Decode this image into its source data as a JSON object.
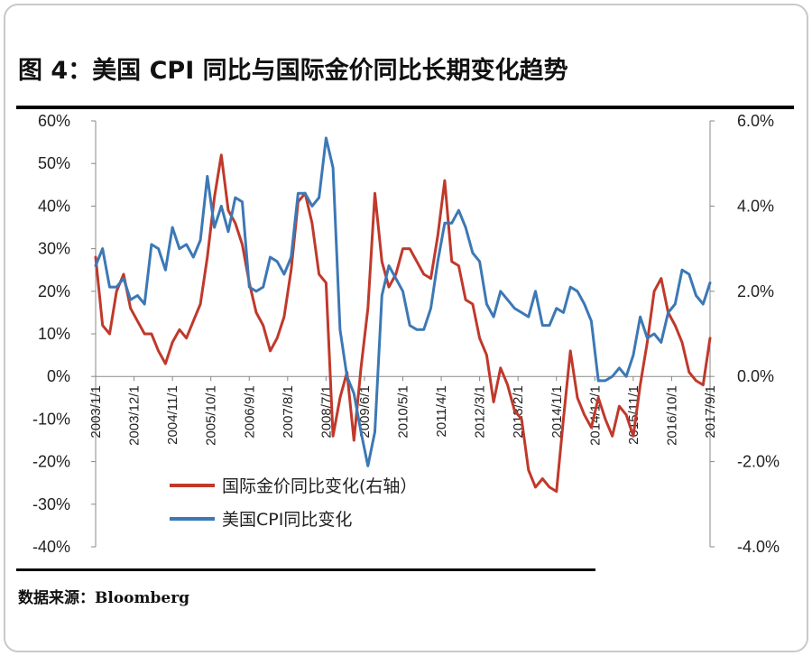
{
  "title": "图 4：美国 CPI 同比与国际金价同比长期变化趋势",
  "source": "数据来源：Bloomberg",
  "chart_data": {
    "type": "line",
    "left_axis": {
      "min": -40,
      "max": 60,
      "step": 10,
      "ticks": [
        "60%",
        "50%",
        "40%",
        "30%",
        "20%",
        "10%",
        "0%",
        "-10%",
        "-20%",
        "-30%",
        "-40%"
      ]
    },
    "right_axis": {
      "min": -4,
      "max": 6,
      "step": 2,
      "ticks": [
        "6.0%",
        "4.0%",
        "2.0%",
        "0.0%",
        "-2.0%",
        "-4.0%"
      ]
    },
    "x_labels": [
      "2003/1/1",
      "2003/12/1",
      "2004/11/1",
      "2005/10/1",
      "2006/9/1",
      "2007/8/1",
      "2008/7/1",
      "2009/6/1",
      "2010/5/1",
      "2011/4/1",
      "2012/3/1",
      "2013/2/1",
      "2014/1/1",
      "2014/12/1",
      "2015/11/1",
      "2016/10/1",
      "2017/9/1"
    ],
    "x_start": "2003-01",
    "x_end": "2017-09",
    "colors": {
      "gold": "#c0392b",
      "cpi": "#3c78b5"
    },
    "legend_position": "bottom-left",
    "series": [
      {
        "name": "国际金价同比变化(右轴）",
        "axis": "right",
        "color": "#c0392b",
        "dates": [
          "2003-01",
          "2003-03",
          "2003-05",
          "2003-07",
          "2003-09",
          "2003-11",
          "2004-01",
          "2004-03",
          "2004-05",
          "2004-07",
          "2004-09",
          "2004-11",
          "2005-01",
          "2005-03",
          "2005-05",
          "2005-07",
          "2005-09",
          "2005-11",
          "2006-01",
          "2006-03",
          "2006-05",
          "2006-07",
          "2006-09",
          "2006-11",
          "2007-01",
          "2007-03",
          "2007-05",
          "2007-07",
          "2007-09",
          "2007-11",
          "2008-01",
          "2008-03",
          "2008-05",
          "2008-07",
          "2008-09",
          "2008-11",
          "2009-01",
          "2009-03",
          "2009-05",
          "2009-07",
          "2009-09",
          "2009-11",
          "2010-01",
          "2010-03",
          "2010-05",
          "2010-07",
          "2010-09",
          "2010-11",
          "2011-01",
          "2011-03",
          "2011-05",
          "2011-07",
          "2011-09",
          "2011-11",
          "2012-01",
          "2012-03",
          "2012-05",
          "2012-07",
          "2012-09",
          "2012-11",
          "2013-01",
          "2013-03",
          "2013-05",
          "2013-07",
          "2013-09",
          "2013-11",
          "2014-01",
          "2014-03",
          "2014-05",
          "2014-07",
          "2014-09",
          "2014-11",
          "2015-01",
          "2015-03",
          "2015-05",
          "2015-07",
          "2015-09",
          "2015-11",
          "2016-01",
          "2016-03",
          "2016-05",
          "2016-07",
          "2016-09",
          "2016-11",
          "2017-01",
          "2017-03",
          "2017-05",
          "2017-07",
          "2017-09"
        ],
        "values": [
          2.8,
          1.2,
          1.0,
          2.0,
          2.4,
          1.6,
          1.3,
          1.0,
          1.0,
          0.6,
          0.3,
          0.8,
          1.1,
          0.9,
          1.3,
          1.7,
          2.8,
          4.2,
          5.2,
          3.9,
          3.6,
          3.1,
          2.2,
          1.5,
          1.2,
          0.6,
          0.9,
          1.4,
          2.5,
          4.1,
          4.3,
          3.6,
          2.4,
          2.2,
          -1.4,
          -0.5,
          0.1,
          -1.5,
          0.2,
          1.6,
          4.3,
          2.7,
          2.1,
          2.4,
          3.0,
          3.0,
          2.7,
          2.4,
          2.3,
          3.3,
          4.6,
          2.7,
          2.6,
          1.8,
          1.7,
          0.9,
          0.5,
          -0.6,
          0.2,
          -0.2,
          -0.8,
          -1.0,
          -2.2,
          -2.6,
          -2.4,
          -2.6,
          -2.7,
          -1.0,
          0.6,
          -0.5,
          -0.9,
          -1.2,
          -0.5,
          -1.0,
          -1.4,
          -0.7,
          -0.9,
          -1.4,
          -0.2,
          0.8,
          2.0,
          2.3,
          1.5,
          1.2,
          0.8,
          0.1,
          -0.1,
          -0.2,
          0.9
        ]
      },
      {
        "name": "美国CPI同比变化",
        "axis": "right",
        "color": "#3c78b5",
        "dates": [
          "2003-01",
          "2003-03",
          "2003-05",
          "2003-07",
          "2003-09",
          "2003-11",
          "2004-01",
          "2004-03",
          "2004-05",
          "2004-07",
          "2004-09",
          "2004-11",
          "2005-01",
          "2005-03",
          "2005-05",
          "2005-07",
          "2005-09",
          "2005-11",
          "2006-01",
          "2006-03",
          "2006-05",
          "2006-07",
          "2006-09",
          "2006-11",
          "2007-01",
          "2007-03",
          "2007-05",
          "2007-07",
          "2007-09",
          "2007-11",
          "2008-01",
          "2008-03",
          "2008-05",
          "2008-07",
          "2008-09",
          "2008-11",
          "2009-01",
          "2009-03",
          "2009-05",
          "2009-07",
          "2009-09",
          "2009-11",
          "2010-01",
          "2010-03",
          "2010-05",
          "2010-07",
          "2010-09",
          "2010-11",
          "2011-01",
          "2011-03",
          "2011-05",
          "2011-07",
          "2011-09",
          "2011-11",
          "2012-01",
          "2012-03",
          "2012-05",
          "2012-07",
          "2012-09",
          "2012-11",
          "2013-01",
          "2013-03",
          "2013-05",
          "2013-07",
          "2013-09",
          "2013-11",
          "2014-01",
          "2014-03",
          "2014-05",
          "2014-07",
          "2014-09",
          "2014-11",
          "2015-01",
          "2015-03",
          "2015-05",
          "2015-07",
          "2015-09",
          "2015-11",
          "2016-01",
          "2016-03",
          "2016-05",
          "2016-07",
          "2016-09",
          "2016-11",
          "2017-01",
          "2017-03",
          "2017-05",
          "2017-07",
          "2017-09"
        ],
        "values": [
          2.6,
          3.0,
          2.1,
          2.1,
          2.3,
          1.8,
          1.9,
          1.7,
          3.1,
          3.0,
          2.5,
          3.5,
          3.0,
          3.1,
          2.8,
          3.2,
          4.7,
          3.5,
          4.0,
          3.4,
          4.2,
          4.1,
          2.1,
          2.0,
          2.1,
          2.8,
          2.7,
          2.4,
          2.8,
          4.3,
          4.3,
          4.0,
          4.2,
          5.6,
          4.9,
          1.1,
          0.0,
          -0.4,
          -1.3,
          -2.1,
          -1.3,
          1.9,
          2.6,
          2.3,
          2.0,
          1.2,
          1.1,
          1.1,
          1.6,
          2.7,
          3.6,
          3.6,
          3.9,
          3.5,
          2.9,
          2.7,
          1.7,
          1.4,
          2.0,
          1.8,
          1.6,
          1.5,
          1.4,
          2.0,
          1.2,
          1.2,
          1.6,
          1.5,
          2.1,
          2.0,
          1.7,
          1.3,
          -0.1,
          -0.1,
          0.0,
          0.2,
          0.0,
          0.5,
          1.4,
          0.9,
          1.0,
          0.8,
          1.5,
          1.7,
          2.5,
          2.4,
          1.9,
          1.7,
          2.2
        ]
      }
    ]
  }
}
